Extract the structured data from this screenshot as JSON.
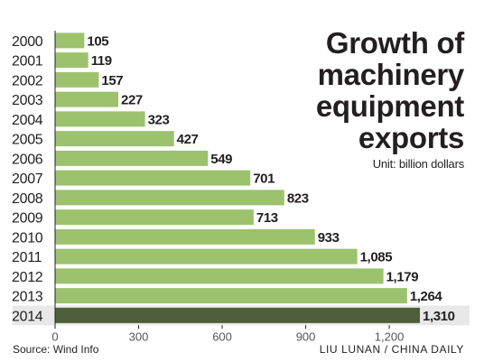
{
  "title": "Growth of\nmachinery\nequipment\nexports",
  "unit": "Unit: billion dollars",
  "source": "Source: Wind Info",
  "credit": "LIU LUNAN / CHINA DAILY",
  "colors": {
    "bar": "#9cc26d",
    "bar_highlight": "#4f5e3a",
    "row_shade": "#e8e8e8",
    "text": "#231f20"
  },
  "chart_data": {
    "type": "bar",
    "orientation": "horizontal",
    "categories": [
      "2000",
      "2001",
      "2002",
      "2003",
      "2004",
      "2005",
      "2006",
      "2007",
      "2008",
      "2009",
      "2010",
      "2011",
      "2012",
      "2013",
      "2014"
    ],
    "values": [
      105,
      119,
      157,
      227,
      323,
      427,
      549,
      701,
      823,
      713,
      933,
      1085,
      1179,
      1264,
      1310
    ],
    "value_labels": [
      "105",
      "119",
      "157",
      "227",
      "323",
      "427",
      "549",
      "701",
      "823",
      "713",
      "933",
      "1,085",
      "1,179",
      "1,264",
      "1,310"
    ],
    "highlighted_category": "2014",
    "xlim": [
      0,
      1400
    ],
    "x_ticks": [
      0,
      300,
      600,
      900,
      1200
    ],
    "x_tick_labels": [
      "0",
      "300",
      "600",
      "900",
      "1,200"
    ],
    "grid": false
  }
}
